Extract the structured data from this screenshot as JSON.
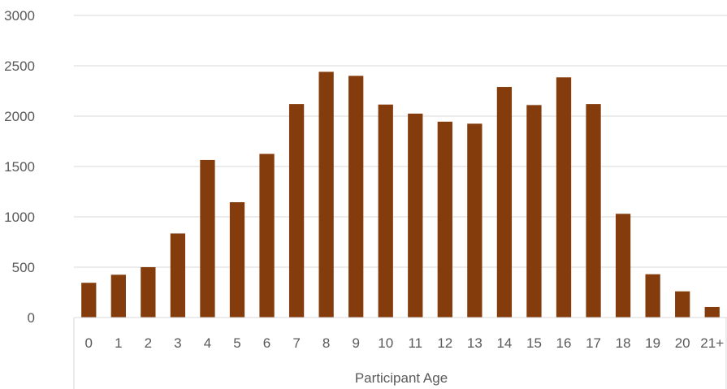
{
  "chart_data": {
    "type": "bar",
    "title": "",
    "xlabel": "Participant Age",
    "ylabel": "",
    "categories": [
      "0",
      "1",
      "2",
      "3",
      "4",
      "5",
      "6",
      "7",
      "8",
      "9",
      "10",
      "11",
      "12",
      "13",
      "14",
      "15",
      "16",
      "17",
      "18",
      "19",
      "20",
      "21+"
    ],
    "values": [
      345,
      425,
      500,
      835,
      1565,
      1145,
      1625,
      2120,
      2440,
      2400,
      2115,
      2025,
      1945,
      1925,
      2290,
      2110,
      2385,
      2120,
      1030,
      430,
      260,
      105
    ],
    "ylim": [
      0,
      3000
    ],
    "yticks": [
      0,
      500,
      1000,
      1500,
      2000,
      2500,
      3000
    ],
    "grid": true,
    "legend": "none",
    "bar_color": "#843C0C",
    "grid_color": "#D9D9D9",
    "text_color": "#595959"
  }
}
